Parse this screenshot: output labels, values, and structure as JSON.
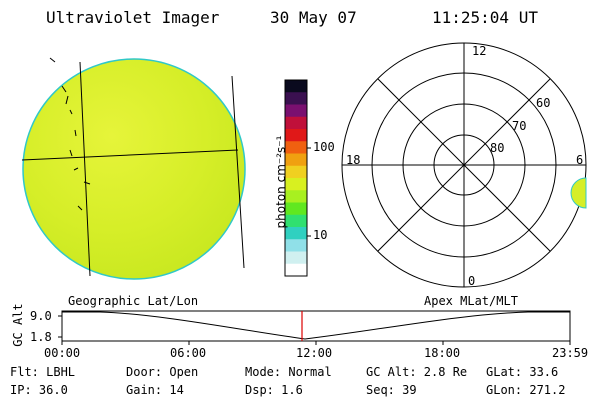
{
  "header": {
    "title": "Ultraviolet Imager",
    "date": "30 May 07",
    "time": "11:25:04 UT"
  },
  "colorbar": {
    "unit_label": "photon cm⁻²s⁻¹",
    "ticks": [
      "100",
      "10"
    ],
    "colors": [
      "#0a0a1e",
      "#3a1050",
      "#7a1070",
      "#c0103a",
      "#e01818",
      "#f06010",
      "#f0a010",
      "#f0d020",
      "#d8f020",
      "#a8f020",
      "#60e820",
      "#30e070",
      "#30d0c0",
      "#90e0e8",
      "#d0f0f0",
      "#ffffff"
    ]
  },
  "left_image": {
    "fill": "#d8f028",
    "edge": "#30c8c8"
  },
  "polar_plot": {
    "mlt_labels": [
      "12",
      "6",
      "0",
      "18"
    ],
    "lat_labels": [
      "60",
      "70",
      "80"
    ]
  },
  "altitude_strip": {
    "left_label": "Geographic Lat/Lon",
    "right_label": "Apex MLat/MLT",
    "y_axis_title": "GC Alt",
    "y_ticks": [
      "9.0",
      "1.8"
    ],
    "x_ticks": [
      "00:00",
      "06:00",
      "12:00",
      "18:00",
      "23:59"
    ],
    "marker_color": "#dd0000"
  },
  "status": {
    "flt": "Flt: LBHL",
    "ip": "IP: 36.0",
    "door": "Door: Open",
    "gain": "Gain: 14",
    "mode": "Mode: Normal",
    "dsp": "Dsp:   1.6",
    "gc_alt": "GC Alt: 2.8 Re",
    "seq": "Seq: 39",
    "glat": "GLat:  33.6",
    "glon": "GLon: 271.2"
  }
}
